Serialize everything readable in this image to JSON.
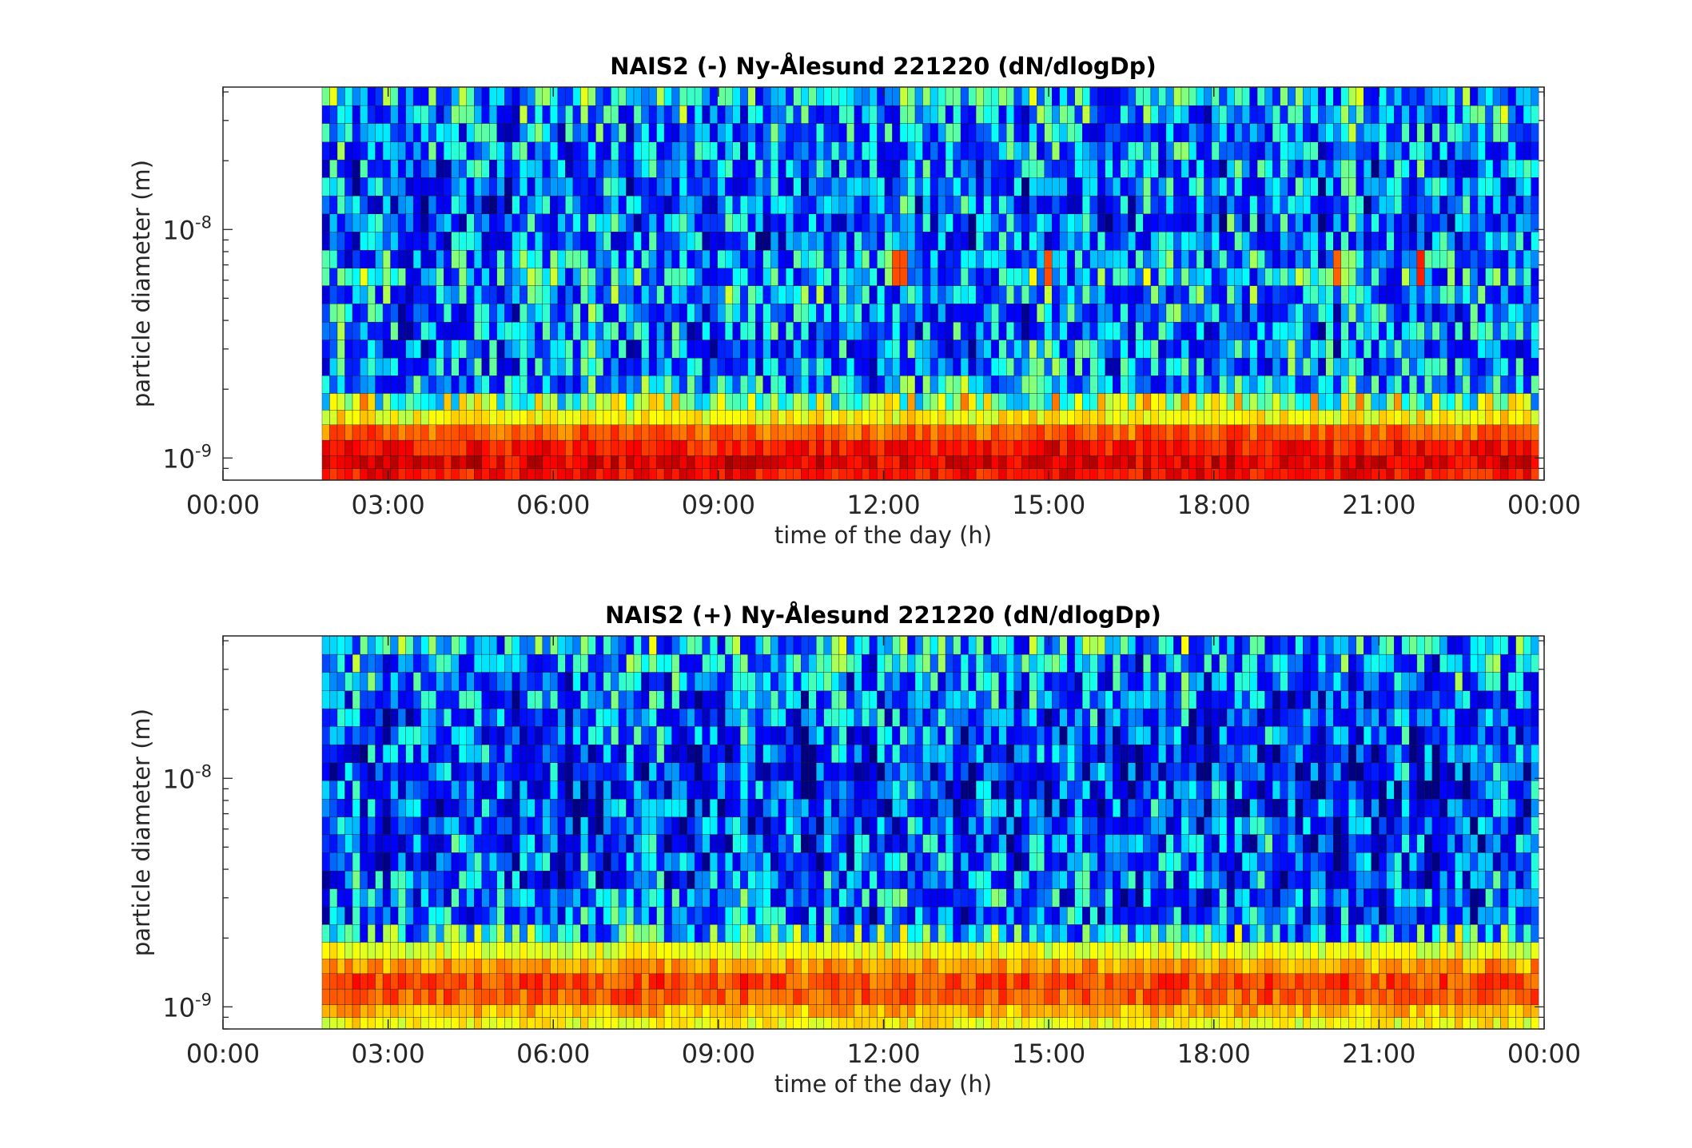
{
  "chart_data": [
    {
      "type": "heatmap",
      "title": "NAIS2 (-) Ny-Ålesund 221220 (dN/dlogDp)",
      "xlabel": "time of the day (h)",
      "ylabel": "particle diameter (m)",
      "x_range_hours": [
        0,
        24
      ],
      "data_start_hour": 1.8,
      "data_end_hour": 23.9,
      "y_scale": "log",
      "y_range_m": [
        8e-10,
        4.2e-08
      ],
      "x_ticks": [
        "00:00",
        "03:00",
        "06:00",
        "09:00",
        "12:00",
        "15:00",
        "18:00",
        "21:00",
        "00:00"
      ],
      "y_ticks": [
        {
          "base": "10",
          "exp": "-8",
          "value": 1e-08
        },
        {
          "base": "10",
          "exp": "-9",
          "value": 1e-09
        }
      ],
      "colormap": "jet",
      "size_bin_profile_low_to_high": [
        {
          "diameter_m": 8.5e-10,
          "level": 0.86
        },
        {
          "diameter_m": 9.5e-10,
          "level": 0.9
        },
        {
          "diameter_m": 1.1e-09,
          "level": 0.86
        },
        {
          "diameter_m": 1.3e-09,
          "level": 0.78
        },
        {
          "diameter_m": 1.5e-09,
          "level": 0.63
        },
        {
          "diameter_m": 1.75e-09,
          "level": 0.5
        },
        {
          "diameter_m": 2.1e-09,
          "level": 0.33
        },
        {
          "diameter_m": 2.5e-09,
          "level": 0.3
        },
        {
          "diameter_m": 3e-09,
          "level": 0.28
        },
        {
          "diameter_m": 3.6e-09,
          "level": 0.28
        },
        {
          "diameter_m": 4.3e-09,
          "level": 0.29
        },
        {
          "diameter_m": 5.2e-09,
          "level": 0.33
        },
        {
          "diameter_m": 6.2e-09,
          "level": 0.36
        },
        {
          "diameter_m": 7.4e-09,
          "level": 0.3
        },
        {
          "diameter_m": 8.9e-09,
          "level": 0.25
        },
        {
          "diameter_m": 1.07e-08,
          "level": 0.25
        },
        {
          "diameter_m": 1.28e-08,
          "level": 0.25
        },
        {
          "diameter_m": 1.54e-08,
          "level": 0.26
        },
        {
          "diameter_m": 1.85e-08,
          "level": 0.27
        },
        {
          "diameter_m": 2.2e-08,
          "level": 0.28
        },
        {
          "diameter_m": 2.65e-08,
          "level": 0.3
        },
        {
          "diameter_m": 3.2e-08,
          "level": 0.32
        },
        {
          "diameter_m": 3.8e-08,
          "level": 0.36
        }
      ],
      "events": [
        {
          "hour": 12.2,
          "diameter_m": 6.5e-09,
          "level": 0.85
        },
        {
          "hour": 12.3,
          "diameter_m": 6.5e-09,
          "level": 0.8
        },
        {
          "hour": 15.0,
          "diameter_m": 6.5e-09,
          "level": 0.8
        },
        {
          "hour": 20.2,
          "diameter_m": 6.5e-09,
          "level": 0.78
        },
        {
          "hour": 21.75,
          "diameter_m": 6.5e-09,
          "level": 0.85
        }
      ],
      "colors": {
        "data_missing": "#ffffff"
      }
    },
    {
      "type": "heatmap",
      "title": "NAIS2 (+) Ny-Ålesund 221220 (dN/dlogDp)",
      "xlabel": "time of the day (h)",
      "ylabel": "particle diameter (m)",
      "x_range_hours": [
        0,
        24
      ],
      "data_start_hour": 1.8,
      "data_end_hour": 23.9,
      "y_scale": "log",
      "y_range_m": [
        8e-10,
        4.2e-08
      ],
      "x_ticks": [
        "00:00",
        "03:00",
        "06:00",
        "09:00",
        "12:00",
        "15:00",
        "18:00",
        "21:00",
        "00:00"
      ],
      "y_ticks": [
        {
          "base": "10",
          "exp": "-8",
          "value": 1e-08
        },
        {
          "base": "10",
          "exp": "-9",
          "value": 1e-09
        }
      ],
      "colormap": "jet",
      "size_bin_profile_low_to_high": [
        {
          "diameter_m": 8.5e-10,
          "level": 0.62
        },
        {
          "diameter_m": 9.5e-10,
          "level": 0.7
        },
        {
          "diameter_m": 1.1e-09,
          "level": 0.78
        },
        {
          "diameter_m": 1.3e-09,
          "level": 0.8
        },
        {
          "diameter_m": 1.5e-09,
          "level": 0.72
        },
        {
          "diameter_m": 1.75e-09,
          "level": 0.6
        },
        {
          "diameter_m": 2.1e-09,
          "level": 0.37
        },
        {
          "diameter_m": 2.5e-09,
          "level": 0.24
        },
        {
          "diameter_m": 3e-09,
          "level": 0.25
        },
        {
          "diameter_m": 3.6e-09,
          "level": 0.23
        },
        {
          "diameter_m": 4.3e-09,
          "level": 0.22
        },
        {
          "diameter_m": 5.2e-09,
          "level": 0.21
        },
        {
          "diameter_m": 6.2e-09,
          "level": 0.2
        },
        {
          "diameter_m": 7.4e-09,
          "level": 0.2
        },
        {
          "diameter_m": 8.9e-09,
          "level": 0.19
        },
        {
          "diameter_m": 1.07e-08,
          "level": 0.19
        },
        {
          "diameter_m": 1.28e-08,
          "level": 0.2
        },
        {
          "diameter_m": 1.54e-08,
          "level": 0.21
        },
        {
          "diameter_m": 1.85e-08,
          "level": 0.22
        },
        {
          "diameter_m": 2.2e-08,
          "level": 0.24
        },
        {
          "diameter_m": 2.65e-08,
          "level": 0.27
        },
        {
          "diameter_m": 3.2e-08,
          "level": 0.3
        },
        {
          "diameter_m": 3.8e-08,
          "level": 0.36
        }
      ],
      "events": [],
      "colors": {
        "data_missing": "#ffffff"
      }
    }
  ]
}
